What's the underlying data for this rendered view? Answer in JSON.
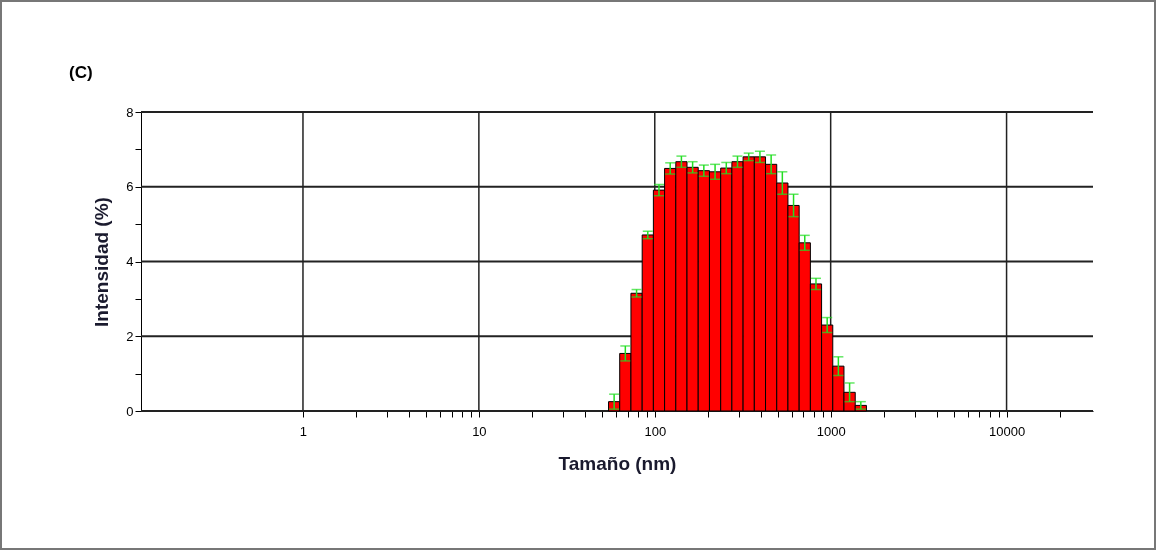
{
  "chart_data": {
    "type": "histogram",
    "title": "(C)",
    "xlabel": "Tamaño (nm)",
    "ylabel": "Intensidad (%)",
    "log": "x",
    "grid": true,
    "color": "#ff0000",
    "bins": [
      54.6,
      63.2,
      73.2,
      84.8,
      98.2,
      113.7,
      131.7,
      152.5,
      176.6,
      204.6,
      237,
      274.4,
      317.8,
      368.1,
      426.3,
      493.6,
      571.6,
      662,
      766.7,
      887.8,
      1028,
      1190,
      1379,
      1597
    ],
    "values": [
      0.25,
      1.54,
      3.15,
      4.71,
      5.91,
      6.49,
      6.67,
      6.52,
      6.43,
      6.4,
      6.5,
      6.67,
      6.8,
      6.8,
      6.6,
      6.1,
      5.5,
      4.5,
      3.4,
      2.3,
      1.2,
      0.5,
      0.15
    ],
    "errors": [
      0.2,
      0.2,
      0.1,
      0.1,
      0.15,
      0.15,
      0.15,
      0.15,
      0.15,
      0.2,
      0.15,
      0.15,
      0.1,
      0.15,
      0.25,
      0.3,
      0.3,
      0.2,
      0.15,
      0.2,
      0.25,
      0.25,
      0.1
    ],
    "xlim": [
      0.12,
      31000
    ],
    "ylim": [
      0,
      8
    ],
    "xticks": [
      1,
      {
        "value": 2,
        "label": null
      },
      {
        "value": 3,
        "label": null
      },
      {
        "value": 4,
        "label": null
      },
      {
        "value": 5,
        "label": null
      },
      {
        "value": 6,
        "label": null
      },
      {
        "value": 7,
        "label": null
      },
      {
        "value": 8,
        "label": null
      },
      {
        "value": 9,
        "label": null
      },
      10,
      {
        "value": 20,
        "label": null
      },
      {
        "value": 30,
        "label": null
      },
      {
        "value": 40,
        "label": null
      },
      {
        "value": 50,
        "label": null
      },
      {
        "value": 60,
        "label": null
      },
      {
        "value": 70,
        "label": null
      },
      {
        "value": 80,
        "label": null
      },
      {
        "value": 90,
        "label": null
      },
      100,
      {
        "value": 200,
        "label": null
      },
      {
        "value": 300,
        "label": null
      },
      {
        "value": 400,
        "label": null
      },
      {
        "value": 500,
        "label": null
      },
      {
        "value": 600,
        "label": null
      },
      {
        "value": 700,
        "label": null
      },
      {
        "value": 800,
        "label": null
      },
      {
        "value": 900,
        "label": null
      },
      1000,
      {
        "value": 2000,
        "label": null
      },
      {
        "value": 3000,
        "label": null
      },
      {
        "value": 4000,
        "label": null
      },
      {
        "value": 5000,
        "label": null
      },
      {
        "value": 6000,
        "label": null
      },
      {
        "value": 7000,
        "label": null
      },
      {
        "value": 8000,
        "label": null
      },
      {
        "value": 9000,
        "label": null
      },
      10000,
      {
        "value": 20000,
        "label": null
      }
    ],
    "yticks": [
      0,
      {
        "value": 1,
        "label": null
      },
      2,
      {
        "value": 3,
        "label": null
      },
      4,
      {
        "value": 5,
        "label": null
      },
      6,
      {
        "value": 7,
        "label": null
      },
      8
    ]
  }
}
